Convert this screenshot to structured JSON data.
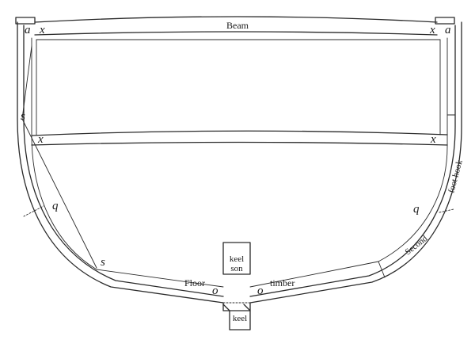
{
  "labels": {
    "beam": "Beam",
    "keelson_top": "keel",
    "keelson_bottom": "son",
    "keel": "keel",
    "floor": "Floor",
    "timber": "timber",
    "second": "Second",
    "foot_hook": "foot hook"
  },
  "letters": {
    "a": "a",
    "x": "x",
    "s": "s",
    "q": "q",
    "o": "o"
  }
}
